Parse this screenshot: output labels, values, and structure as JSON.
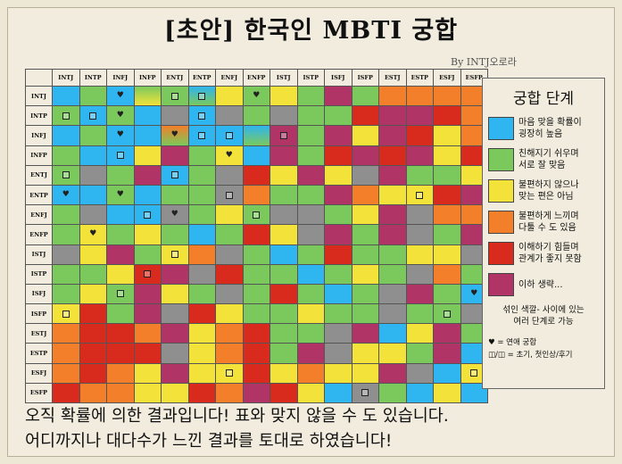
{
  "title": "[초안] 한국인 MBTI 궁합",
  "byline": "By INTJ오로라",
  "types": [
    "INTJ",
    "INTP",
    "INFJ",
    "INFP",
    "ENTJ",
    "ENTP",
    "ENFJ",
    "ENFP",
    "ISTJ",
    "ISTP",
    "ISFJ",
    "ISFP",
    "ESTJ",
    "ESTP",
    "ESFJ",
    "ESFP"
  ],
  "colors": {
    "blue": "#2fb5ef",
    "green": "#7bc95c",
    "yellow": "#f3e23a",
    "orange": "#f47f2a",
    "red": "#d92a1e",
    "purple": "#b03466",
    "gray": "#8f8f8f"
  },
  "grid": [
    [
      "B",
      "G",
      "B",
      "GY",
      "G",
      "BG",
      "Y",
      "G",
      "Y",
      "G",
      "P",
      "G",
      "O",
      "O",
      "O",
      "O"
    ],
    [
      "G",
      "B",
      "G",
      "B",
      "Gr",
      "B",
      "Gr",
      "G",
      "Gr",
      "G",
      "G",
      "R",
      "P",
      "P",
      "R",
      "O"
    ],
    [
      "B",
      "G",
      "B",
      "B",
      "OG",
      "B",
      "B",
      "BG",
      "P",
      "G",
      "P",
      "Y",
      "P",
      "R",
      "Y",
      "O"
    ],
    [
      "G",
      "B",
      "B",
      "Y",
      "P",
      "G",
      "Y",
      "B",
      "P",
      "G",
      "R",
      "P",
      "R",
      "P",
      "Y",
      "R"
    ],
    [
      "G",
      "Gr",
      "G",
      "P",
      "B",
      "G",
      "Gr",
      "R",
      "Y",
      "P",
      "Y",
      "Gr",
      "P",
      "G",
      "G",
      "Y"
    ],
    [
      "B",
      "B",
      "G",
      "B",
      "G",
      "G",
      "Gr",
      "O",
      "G",
      "G",
      "P",
      "O",
      "Y",
      "Y",
      "R",
      "P"
    ],
    [
      "G",
      "Gr",
      "B",
      "B",
      "Gr",
      "G",
      "Y",
      "G",
      "Gr",
      "Gr",
      "G",
      "Y",
      "P",
      "Gr",
      "O",
      "O"
    ],
    [
      "G",
      "Y",
      "G",
      "Y",
      "G",
      "B",
      "G",
      "R",
      "Y",
      "Gr",
      "P",
      "G",
      "P",
      "Gr",
      "G",
      "P"
    ],
    [
      "Gr",
      "Y",
      "P",
      "G",
      "Y",
      "O",
      "Gr",
      "G",
      "B",
      "G",
      "R",
      "G",
      "G",
      "Y",
      "Y",
      "Gr"
    ],
    [
      "G",
      "G",
      "Y",
      "R",
      "P",
      "Gr",
      "R",
      "G",
      "G",
      "B",
      "G",
      "Y",
      "G",
      "Gr",
      "O",
      "G"
    ],
    [
      "G",
      "Y",
      "G",
      "P",
      "Y",
      "G",
      "Gr",
      "G",
      "R",
      "G",
      "B",
      "G",
      "Gr",
      "P",
      "G",
      "B"
    ],
    [
      "Y",
      "R",
      "G",
      "P",
      "Gr",
      "R",
      "Y",
      "G",
      "G",
      "Y",
      "G",
      "G",
      "Gr",
      "G",
      "G",
      "Gr"
    ],
    [
      "O",
      "R",
      "R",
      "O",
      "P",
      "Y",
      "O",
      "R",
      "G",
      "G",
      "Gr",
      "P",
      "B",
      "Y",
      "P",
      "G"
    ],
    [
      "O",
      "R",
      "R",
      "R",
      "Gr",
      "Y",
      "O",
      "R",
      "G",
      "P",
      "Gr",
      "Y",
      "Y",
      "G",
      "P",
      "B"
    ],
    [
      "O",
      "R",
      "O",
      "Y",
      "P",
      "Y",
      "Y",
      "R",
      "Y",
      "O",
      "Y",
      "Y",
      "P",
      "Gr",
      "B",
      "Y"
    ],
    [
      "R",
      "O",
      "O",
      "Y",
      "Y",
      "R",
      "O",
      "P",
      "R",
      "Y",
      "B",
      "Gr",
      "G",
      "B",
      "Y",
      "B"
    ]
  ],
  "marks": [
    {
      "r": 0,
      "c": 7,
      "t": "♥"
    },
    {
      "r": 0,
      "c": 2,
      "t": "♥"
    },
    {
      "r": 0,
      "c": 4,
      "t": "◫"
    },
    {
      "r": 0,
      "c": 5,
      "t": "◫"
    },
    {
      "r": 1,
      "c": 0,
      "t": "◫"
    },
    {
      "r": 1,
      "c": 1,
      "t": "◫"
    },
    {
      "r": 1,
      "c": 2,
      "t": "♥"
    },
    {
      "r": 1,
      "c": 5,
      "t": "◫"
    },
    {
      "r": 2,
      "c": 2,
      "t": "♥"
    },
    {
      "r": 2,
      "c": 4,
      "t": "♥"
    },
    {
      "r": 2,
      "c": 5,
      "t": "◫"
    },
    {
      "r": 2,
      "c": 6,
      "t": "◫"
    },
    {
      "r": 2,
      "c": 8,
      "t": "◫"
    },
    {
      "r": 3,
      "c": 2,
      "t": "◫"
    },
    {
      "r": 3,
      "c": 6,
      "t": "♥"
    },
    {
      "r": 4,
      "c": 0,
      "t": "◫"
    },
    {
      "r": 4,
      "c": 4,
      "t": "◫"
    },
    {
      "r": 5,
      "c": 0,
      "t": "♥"
    },
    {
      "r": 5,
      "c": 2,
      "t": "♥"
    },
    {
      "r": 5,
      "c": 6,
      "t": "◫"
    },
    {
      "r": 5,
      "c": 13,
      "t": "◫"
    },
    {
      "r": 6,
      "c": 3,
      "t": "◫"
    },
    {
      "r": 6,
      "c": 4,
      "t": "♥"
    },
    {
      "r": 6,
      "c": 7,
      "t": "◫"
    },
    {
      "r": 7,
      "c": 1,
      "t": "♥"
    },
    {
      "r": 8,
      "c": 4,
      "t": "◫"
    },
    {
      "r": 9,
      "c": 3,
      "t": "◫"
    },
    {
      "r": 10,
      "c": 2,
      "t": "◫"
    },
    {
      "r": 10,
      "c": 15,
      "t": "♥"
    },
    {
      "r": 11,
      "c": 0,
      "t": "◫"
    },
    {
      "r": 11,
      "c": 14,
      "t": "◫"
    },
    {
      "r": 14,
      "c": 6,
      "t": "◫"
    },
    {
      "r": 14,
      "c": 15,
      "t": "◫"
    },
    {
      "r": 15,
      "c": 11,
      "t": "◫"
    }
  ],
  "legend": {
    "title": "궁합 단계",
    "items": [
      {
        "color": "#2fb5ef",
        "text": "마음 맞을 확률이\n굉장히 높음"
      },
      {
        "color": "#7bc95c",
        "text": "친해지기 쉬우며\n서로 잘 맞음"
      },
      {
        "color": "#f3e23a",
        "text": "불편하지 않으나\n맞는 편은 아님"
      },
      {
        "color": "#f47f2a",
        "text": "불편하게 느끼며\n다툴 수 도 있음"
      },
      {
        "color": "#d92a1e",
        "text": "이해하기 힘들며\n관계가 좋지 못함"
      },
      {
        "color": "#b03466",
        "text": "이하 생략..."
      }
    ],
    "note": "섞인 색깔- 사이에 있는\n여러 단계로 가능",
    "key_heart": "♥ = 연애 궁합",
    "key_box": "◫/◫ = 초기, 첫인상/후기"
  },
  "footer": {
    "line1": "오직 확률에 의한 결과입니다! 표와 맞지 않을 수 도 있습니다.",
    "line2": "어디까지나 대다수가 느낀 결과를 토대로 하였습니다!"
  }
}
